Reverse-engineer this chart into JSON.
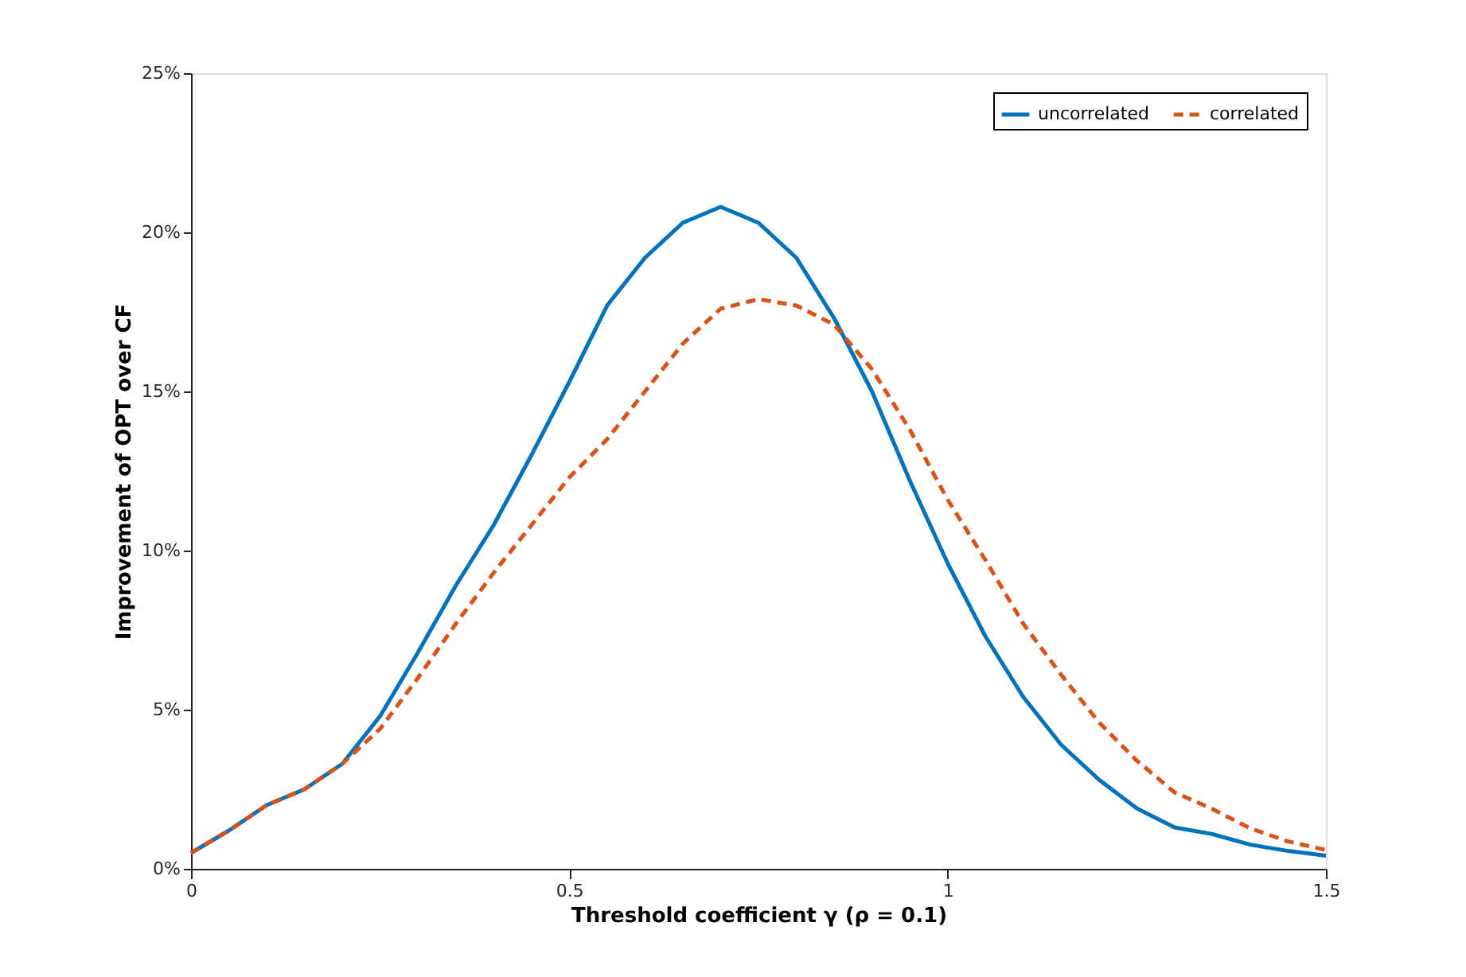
{
  "chart_data": {
    "type": "line",
    "xlabel": "Threshold coefficient γ (ρ = 0.1)",
    "ylabel": "Improvement of OPT over CF",
    "x": [
      0,
      0.05,
      0.1,
      0.15,
      0.2,
      0.25,
      0.3,
      0.35,
      0.4,
      0.45,
      0.5,
      0.55,
      0.6,
      0.65,
      0.7,
      0.75,
      0.8,
      0.85,
      0.9,
      0.95,
      1.0,
      1.05,
      1.1,
      1.15,
      1.2,
      1.25,
      1.3,
      1.35,
      1.4,
      1.45,
      1.5
    ],
    "series": [
      {
        "name": "uncorrelated",
        "color": "#0072bd",
        "line_style": "solid",
        "values": [
          0.5,
          1.2,
          2.0,
          2.5,
          3.3,
          4.8,
          6.8,
          8.9,
          10.8,
          13.0,
          15.3,
          17.7,
          19.2,
          20.3,
          20.8,
          20.3,
          19.2,
          17.3,
          15.0,
          12.2,
          9.6,
          7.3,
          5.4,
          3.9,
          2.8,
          1.9,
          1.3,
          1.09,
          0.76,
          0.56,
          0.41
        ]
      },
      {
        "name": "correlated",
        "color": "#d95319",
        "line_style": "dashed",
        "values": [
          0.5,
          1.2,
          2.0,
          2.5,
          3.3,
          4.4,
          6.0,
          7.7,
          9.3,
          10.8,
          12.3,
          13.5,
          15.0,
          16.5,
          17.6,
          17.9,
          17.7,
          17.1,
          15.7,
          13.8,
          11.6,
          9.7,
          7.7,
          6.1,
          4.6,
          3.4,
          2.4,
          1.88,
          1.27,
          0.86,
          0.59
        ]
      }
    ],
    "xlim": [
      0,
      1.5
    ],
    "xticks": [
      0,
      0.5,
      1,
      1.5
    ],
    "ylim": [
      0,
      25
    ],
    "yticks": [
      {
        "value": 0,
        "label": "0%"
      },
      {
        "value": 5,
        "label": "5%"
      },
      {
        "value": 10,
        "label": "10%"
      },
      {
        "value": 15,
        "label": "15%"
      },
      {
        "value": 20,
        "label": "20%"
      },
      {
        "value": 25,
        "label": "25%"
      }
    ],
    "grid": false,
    "legend": "top right",
    "marker": "none"
  }
}
